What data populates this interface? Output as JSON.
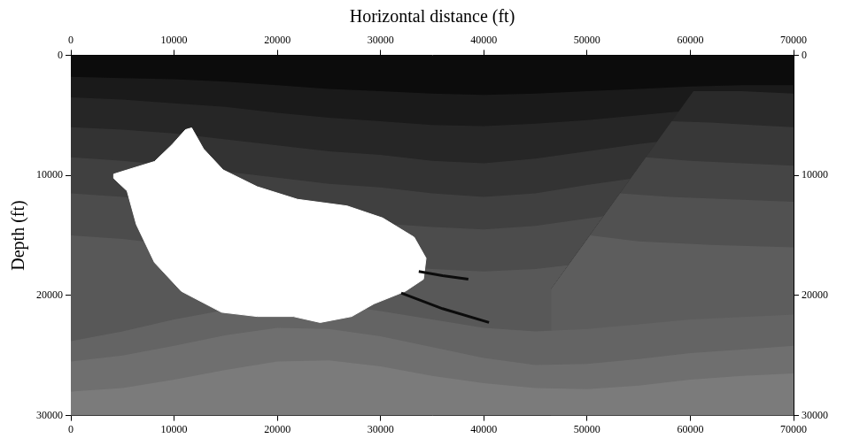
{
  "chart_data": {
    "type": "area",
    "x_label": "Horizontal distance (ft)",
    "y_label": "Depth (ft)",
    "xlim": [
      0,
      70000
    ],
    "ylim": [
      0,
      30000
    ],
    "xticks": [
      0,
      10000,
      20000,
      30000,
      40000,
      50000,
      60000,
      70000
    ],
    "yticks": [
      0,
      10000,
      20000,
      30000
    ],
    "grid": false,
    "legend": false,
    "series": [
      {
        "type": "area",
        "color": "#0c0c0c",
        "x": [
          0,
          70000
        ],
        "values": [
          0,
          0
        ]
      },
      {
        "type": "area",
        "color": "#1a1a1a",
        "x": [
          0,
          5000,
          10000,
          15000,
          20000,
          25000,
          30000,
          35000,
          40000,
          45000,
          50000,
          55000,
          60000,
          65000,
          70000
        ],
        "values": [
          1800,
          1900,
          2000,
          2200,
          2500,
          2800,
          3000,
          3200,
          3300,
          3200,
          3000,
          2800,
          2600,
          2500,
          2500
        ]
      },
      {
        "type": "area",
        "color": "#262626",
        "x": [
          0,
          5000,
          10000,
          15000,
          20000,
          25000,
          30000,
          35000,
          40000,
          45000,
          50000,
          55000,
          60000,
          65000,
          70000
        ],
        "values": [
          3500,
          3700,
          4000,
          4300,
          4800,
          5200,
          5500,
          5800,
          5900,
          5700,
          5400,
          5000,
          4600,
          4400,
          4300
        ]
      },
      {
        "type": "area",
        "color": "#333333",
        "x": [
          0,
          5000,
          10000,
          15000,
          20000,
          25000,
          30000,
          35000,
          40000,
          45000,
          50000,
          55000,
          60000,
          65000,
          70000
        ],
        "values": [
          6000,
          6200,
          6500,
          7000,
          7500,
          8000,
          8300,
          8800,
          9000,
          8600,
          8000,
          7400,
          6900,
          6600,
          6500
        ]
      },
      {
        "type": "area",
        "color": "#404040",
        "x": [
          0,
          5000,
          10000,
          15000,
          20000,
          25000,
          30000,
          35000,
          40000,
          45000,
          50000,
          55000,
          60000,
          65000,
          70000
        ],
        "values": [
          8500,
          8800,
          9200,
          9700,
          10200,
          10700,
          11000,
          11500,
          11800,
          11500,
          10800,
          10200,
          9700,
          9400,
          9200
        ]
      },
      {
        "type": "area",
        "color": "#4c4c4c",
        "x": [
          0,
          5000,
          10000,
          15000,
          20000,
          25000,
          30000,
          35000,
          40000,
          45000,
          50000,
          55000,
          60000,
          65000,
          70000
        ],
        "values": [
          11500,
          11800,
          12200,
          12800,
          13400,
          13800,
          14000,
          14300,
          14500,
          14200,
          13600,
          13000,
          12500,
          12200,
          12000
        ]
      },
      {
        "type": "area",
        "color": "#585858",
        "x": [
          0,
          5000,
          10000,
          15000,
          20000,
          25000,
          30000,
          35000,
          40000,
          45000,
          50000,
          55000,
          60000,
          65000,
          70000
        ],
        "values": [
          15000,
          15300,
          15800,
          16300,
          16800,
          17200,
          17500,
          17800,
          18000,
          17800,
          17300,
          16800,
          16300,
          16000,
          15800
        ]
      },
      {
        "type": "area",
        "color": "#2a2a2a",
        "x": [
          46500,
          60300,
          65000,
          70000
        ],
        "values": [
          19500,
          3000,
          3000,
          3200
        ]
      },
      {
        "type": "area",
        "color": "#383838",
        "x": [
          46500,
          58200,
          62000,
          66000,
          70000
        ],
        "values": [
          19500,
          5500,
          5600,
          5800,
          6000
        ]
      },
      {
        "type": "area",
        "color": "#454545",
        "x": [
          46500,
          55700,
          60000,
          65000,
          70000
        ],
        "values": [
          19500,
          8500,
          8800,
          9000,
          9200
        ]
      },
      {
        "type": "area",
        "color": "#515151",
        "x": [
          46500,
          53200,
          58000,
          64000,
          70000
        ],
        "values": [
          19500,
          11500,
          11800,
          12000,
          12200
        ]
      },
      {
        "type": "area",
        "color": "#5d5d5d",
        "x": [
          46500,
          50300,
          55000,
          62000,
          70000
        ],
        "values": [
          19500,
          15000,
          15500,
          15800,
          16000
        ]
      },
      {
        "type": "area",
        "color": "#646464",
        "x": [
          0,
          5000,
          10000,
          15000,
          20000,
          25000,
          30000,
          35000,
          40000,
          45000,
          50000,
          55000,
          60000,
          65000,
          70000
        ],
        "values": [
          23800,
          23000,
          22000,
          21200,
          20600,
          20700,
          21300,
          22000,
          22700,
          23000,
          22800,
          22400,
          22000,
          21800,
          21600
        ]
      },
      {
        "type": "area",
        "color": "#6f6f6f",
        "x": [
          0,
          5000,
          10000,
          15000,
          20000,
          25000,
          30000,
          35000,
          40000,
          45000,
          50000,
          55000,
          60000,
          65000,
          70000
        ],
        "values": [
          25500,
          25000,
          24200,
          23300,
          22700,
          22800,
          23400,
          24300,
          25200,
          25800,
          25700,
          25300,
          24800,
          24500,
          24200
        ]
      },
      {
        "type": "area",
        "color": "#7b7b7b",
        "x": [
          0,
          5000,
          10000,
          15000,
          20000,
          25000,
          30000,
          35000,
          40000,
          45000,
          50000,
          55000,
          60000,
          65000,
          70000
        ],
        "values": [
          28000,
          27700,
          27000,
          26200,
          25500,
          25400,
          25900,
          26700,
          27300,
          27700,
          27800,
          27500,
          27000,
          26700,
          26500
        ]
      },
      {
        "type": "polygon",
        "color": "#ffffff",
        "x": [
          11700,
          12850,
          14750,
          18050,
          21950,
          26750,
          30200,
          33250,
          34400,
          34150,
          32400,
          29350,
          27200,
          24150,
          21550,
          18050,
          14600,
          10700,
          8100,
          6350,
          5450,
          4150,
          4150,
          5450,
          8100,
          9800,
          11100,
          11700
        ],
        "values": [
          6050,
          7800,
          9550,
          10950,
          12000,
          12550,
          13550,
          15150,
          16900,
          18650,
          19650,
          20700,
          21750,
          22250,
          21750,
          21750,
          21400,
          19650,
          17250,
          14100,
          11300,
          10250,
          9900,
          9550,
          8850,
          7450,
          6200,
          6050
        ]
      },
      {
        "type": "line",
        "color": "#0c0c0c",
        "x": [
          33700,
          36000,
          38500
        ],
        "values": [
          18000,
          18350,
          18650
        ]
      },
      {
        "type": "line",
        "color": "#0c0c0c",
        "x": [
          32000,
          36000,
          40500
        ],
        "values": [
          19800,
          21100,
          22250
        ]
      }
    ]
  }
}
